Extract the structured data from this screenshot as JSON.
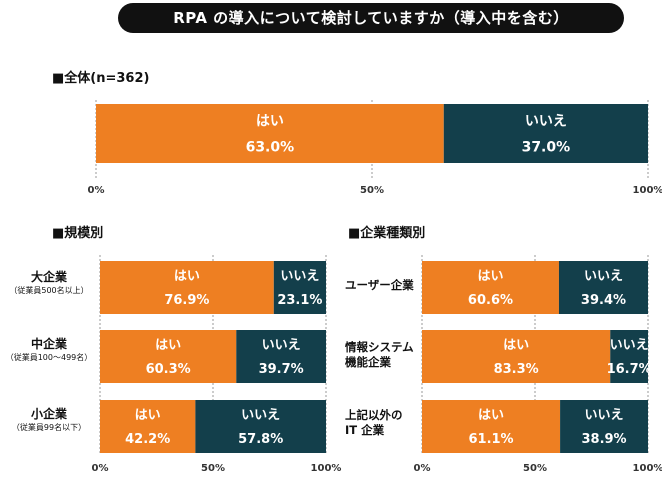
{
  "title": "RPA の導入について検討していますか（導入中を含む）",
  "colors": {
    "yes": "#EE7F22",
    "no": "#133F4B"
  },
  "chart_data": [
    {
      "id": "overall",
      "type": "bar",
      "orientation": "horizontal-stacked-100",
      "title": "■全体(n=362)",
      "series_names": [
        "はい",
        "いいえ"
      ],
      "ticks": [
        "0%",
        "50%",
        "100%"
      ],
      "xlim": [
        0,
        100
      ],
      "rows": [
        {
          "label": "",
          "sub": "",
          "yes": 63.0,
          "no": 37.0,
          "yes_text": "63.0%",
          "no_text": "37.0%"
        }
      ]
    },
    {
      "id": "by-size",
      "type": "bar",
      "orientation": "horizontal-stacked-100",
      "title": "■規模別",
      "series_names": [
        "はい",
        "いいえ"
      ],
      "ticks": [
        "0%",
        "50%",
        "100%"
      ],
      "xlim": [
        0,
        100
      ],
      "rows": [
        {
          "label": "大企業",
          "sub": "（従業員500名以上）",
          "yes": 76.9,
          "no": 23.1,
          "yes_text": "76.9%",
          "no_text": "23.1%"
        },
        {
          "label": "中企業",
          "sub": "（従業員100～499名）",
          "yes": 60.3,
          "no": 39.7,
          "yes_text": "60.3%",
          "no_text": "39.7%"
        },
        {
          "label": "小企業",
          "sub": "（従業員99名以下）",
          "yes": 42.2,
          "no": 57.8,
          "yes_text": "42.2%",
          "no_text": "57.8%"
        }
      ]
    },
    {
      "id": "by-type",
      "type": "bar",
      "orientation": "horizontal-stacked-100",
      "title": "■企業種類別",
      "series_names": [
        "はい",
        "いいえ"
      ],
      "ticks": [
        "0%",
        "50%",
        "100%"
      ],
      "xlim": [
        0,
        100
      ],
      "rows": [
        {
          "label": "ユーザー企業",
          "label2": "",
          "yes": 60.6,
          "no": 39.4,
          "yes_text": "60.6%",
          "no_text": "39.4%"
        },
        {
          "label": "情報システム",
          "label2": "機能企業",
          "yes": 83.3,
          "no": 16.7,
          "yes_text": "83.3%",
          "no_text": "16.7%"
        },
        {
          "label": "上記以外の",
          "label2": "IT 企業",
          "yes": 61.1,
          "no": 38.9,
          "yes_text": "61.1%",
          "no_text": "38.9%"
        }
      ]
    }
  ]
}
